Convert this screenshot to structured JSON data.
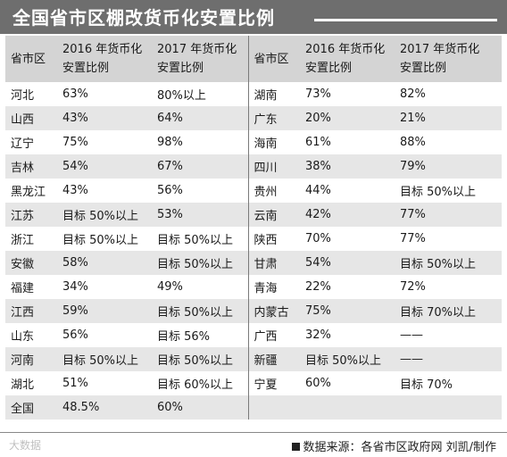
{
  "title": "全国省市区棚改货币化安置比例",
  "headers": {
    "province": "省市区",
    "y2016": "2016 年货币化安置比例",
    "y2016_line1": "2016 年货币化",
    "y2016_line2": "安置比例",
    "y2017_line1": "2017 年货币化",
    "y2017_line2": "安置比例"
  },
  "rows": [
    {
      "left": {
        "name": "河北",
        "y2016": "63%",
        "y2017": "80%以上"
      },
      "right": {
        "name": "湖南",
        "y2016": "73%",
        "y2017": "82%"
      }
    },
    {
      "left": {
        "name": "山西",
        "y2016": "43%",
        "y2017": "64%"
      },
      "right": {
        "name": "广东",
        "y2016": "20%",
        "y2017": "21%"
      }
    },
    {
      "left": {
        "name": "辽宁",
        "y2016": "75%",
        "y2017": "98%"
      },
      "right": {
        "name": "海南",
        "y2016": "61%",
        "y2017": "88%"
      }
    },
    {
      "left": {
        "name": "吉林",
        "y2016": "54%",
        "y2017": "67%"
      },
      "right": {
        "name": "四川",
        "y2016": "38%",
        "y2017": "79%"
      }
    },
    {
      "left": {
        "name": "黑龙江",
        "y2016": "43%",
        "y2017": "56%"
      },
      "right": {
        "name": "贵州",
        "y2016": "44%",
        "y2017": "目标 50%以上"
      }
    },
    {
      "left": {
        "name": "江苏",
        "y2016": "目标 50%以上",
        "y2017": "53%"
      },
      "right": {
        "name": "云南",
        "y2016": "42%",
        "y2017": "77%"
      }
    },
    {
      "left": {
        "name": "浙江",
        "y2016": "目标 50%以上",
        "y2017": "目标 50%以上"
      },
      "right": {
        "name": "陕西",
        "y2016": "70%",
        "y2017": "77%"
      }
    },
    {
      "left": {
        "name": "安徽",
        "y2016": "58%",
        "y2017": "目标 50%以上"
      },
      "right": {
        "name": "甘肃",
        "y2016": "54%",
        "y2017": "目标 50%以上"
      }
    },
    {
      "left": {
        "name": "福建",
        "y2016": "34%",
        "y2017": "49%"
      },
      "right": {
        "name": "青海",
        "y2016": "22%",
        "y2017": "72%"
      }
    },
    {
      "left": {
        "name": "江西",
        "y2016": "59%",
        "y2017": "目标 50%以上"
      },
      "right": {
        "name": "内蒙古",
        "y2016": "75%",
        "y2017": "目标 70%以上"
      }
    },
    {
      "left": {
        "name": "山东",
        "y2016": "56%",
        "y2017": "目标 56%"
      },
      "right": {
        "name": "广西",
        "y2016": "32%",
        "y2017": "——"
      }
    },
    {
      "left": {
        "name": "河南",
        "y2016": "目标 50%以上",
        "y2017": "目标 50%以上"
      },
      "right": {
        "name": "新疆",
        "y2016": "目标 50%以上",
        "y2017": "——"
      }
    },
    {
      "left": {
        "name": "湖北",
        "y2016": "51%",
        "y2017": "目标 60%以上"
      },
      "right": {
        "name": "宁夏",
        "y2016": "60%",
        "y2017": "目标 70%"
      }
    },
    {
      "left": {
        "name": "全国",
        "y2016": "48.5%",
        "y2017": "60%"
      },
      "right": {
        "name": "",
        "y2016": "",
        "y2017": ""
      }
    }
  ],
  "footer": {
    "logo": "大数据",
    "source": "数据来源：各省市区政府网  刘凯/制作"
  }
}
